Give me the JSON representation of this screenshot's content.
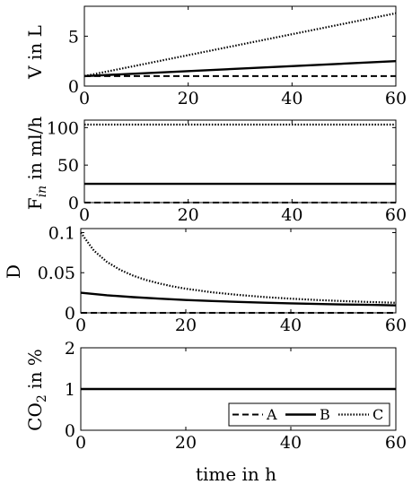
{
  "chart_data": [
    {
      "type": "line",
      "ylabel": "V in L",
      "xlim": [
        0,
        60
      ],
      "ylim": [
        0,
        8
      ],
      "xticks": [
        "0",
        "20",
        "40",
        "60"
      ],
      "yticks": [
        {
          "value": 0,
          "label": "0"
        },
        {
          "value": 5,
          "label": "5"
        }
      ],
      "series": [
        {
          "name": "A",
          "style": "dashed",
          "x": [
            0,
            60
          ],
          "y": [
            1,
            1
          ]
        },
        {
          "name": "B",
          "style": "solid",
          "x": [
            0,
            60
          ],
          "y": [
            1,
            2.5
          ]
        },
        {
          "name": "C",
          "style": "dotted",
          "x": [
            0,
            60
          ],
          "y": [
            1,
            7.3
          ]
        }
      ]
    },
    {
      "type": "line",
      "ylabel": "F",
      "ylabel_sub": "in",
      "ylabel_rest": " in ml/h",
      "xlim": [
        0,
        60
      ],
      "ylim": [
        0,
        110
      ],
      "xticks": [
        "0",
        "20",
        "40",
        "60"
      ],
      "yticks": [
        {
          "value": 0,
          "label": "0"
        },
        {
          "value": 50,
          "label": "50"
        },
        {
          "value": 100,
          "label": "100"
        }
      ],
      "series": [
        {
          "name": "A",
          "style": "dashed",
          "x": [
            0,
            60
          ],
          "y": [
            0,
            0
          ]
        },
        {
          "name": "B",
          "style": "solid",
          "x": [
            0,
            60
          ],
          "y": [
            25,
            25
          ]
        },
        {
          "name": "C",
          "style": "dotted",
          "x": [
            0,
            60
          ],
          "y": [
            104,
            104
          ]
        }
      ]
    },
    {
      "type": "line",
      "ylabel": "D",
      "xlim": [
        0,
        60
      ],
      "ylim": [
        0,
        0.105
      ],
      "xticks": [
        "0",
        "20",
        "40",
        "60"
      ],
      "yticks": [
        {
          "value": 0,
          "label": "0"
        },
        {
          "value": 0.05,
          "label": "0.05"
        },
        {
          "value": 0.1,
          "label": "0.1"
        }
      ],
      "series": [
        {
          "name": "A",
          "style": "dashed",
          "x": [
            0,
            60
          ],
          "y": [
            0,
            0
          ]
        },
        {
          "name": "B",
          "style": "solid",
          "x": [
            0,
            5,
            10,
            15,
            20,
            25,
            30,
            35,
            40,
            45,
            50,
            55,
            60
          ],
          "y": [
            0.025,
            0.0219,
            0.0195,
            0.0176,
            0.016,
            0.0147,
            0.0136,
            0.0126,
            0.0118,
            0.0111,
            0.0104,
            0.0099,
            0.0093
          ]
        },
        {
          "name": "C",
          "style": "dotted",
          "x": [
            0,
            2.5,
            5,
            7.5,
            10,
            12.5,
            15,
            17.5,
            20,
            25,
            30,
            35,
            40,
            45,
            50,
            55,
            60
          ],
          "y": [
            0.1,
            0.0775,
            0.0633,
            0.0535,
            0.0463,
            0.0408,
            0.0365,
            0.033,
            0.0301,
            0.0256,
            0.0223,
            0.0197,
            0.0177,
            0.016,
            0.0146,
            0.0135,
            0.0125
          ]
        }
      ]
    },
    {
      "type": "line",
      "ylabel": "CO",
      "ylabel_sub": "2",
      "ylabel_rest": " in %",
      "xlabel": "time in h",
      "xlim": [
        0,
        60
      ],
      "ylim": [
        0,
        2
      ],
      "xticks": [
        "0",
        "20",
        "40",
        "60"
      ],
      "yticks": [
        {
          "value": 0,
          "label": "0"
        },
        {
          "value": 1,
          "label": "1"
        },
        {
          "value": 2,
          "label": "2"
        }
      ],
      "legend": {
        "placement": "bottom-right",
        "entries": [
          "A",
          "B",
          "C"
        ]
      },
      "series": [
        {
          "name": "B",
          "style": "solid",
          "x": [
            0,
            60
          ],
          "y": [
            1,
            1
          ]
        }
      ]
    }
  ]
}
